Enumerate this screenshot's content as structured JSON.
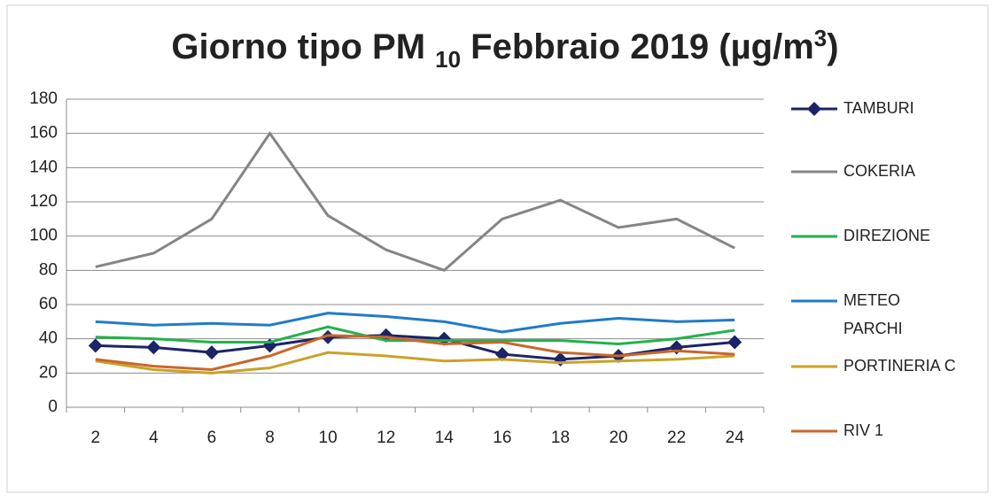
{
  "chart_data": {
    "type": "line",
    "title": [
      "Giorno tipo PM ",
      "10",
      " Febbraio 2019 (µg/m",
      "3",
      ")"
    ],
    "categories": [
      "2",
      "4",
      "6",
      "8",
      "10",
      "12",
      "14",
      "16",
      "18",
      "20",
      "22",
      "24"
    ],
    "ylim": [
      0,
      180
    ],
    "yticks": [
      0,
      20,
      40,
      60,
      80,
      100,
      120,
      140,
      160,
      180
    ],
    "grid": true,
    "legend": "right",
    "series": [
      {
        "name": "TAMBURI",
        "color": "#1b2466",
        "marker": "diamond",
        "values": [
          36,
          35,
          32,
          36,
          41,
          42,
          40,
          31,
          28,
          30,
          35,
          38
        ]
      },
      {
        "name": "COKERIA",
        "color": "#858585",
        "values": [
          82,
          90,
          110,
          160,
          112,
          92,
          80,
          110,
          121,
          105,
          110,
          93
        ]
      },
      {
        "name": "DIREZIONE",
        "color": "#22b14c",
        "values": [
          41,
          40,
          38,
          38,
          47,
          39,
          39,
          39,
          39,
          37,
          40,
          45
        ]
      },
      {
        "name": "METEO PARCHI",
        "color": "#1f7bc9",
        "values": [
          50,
          48,
          49,
          48,
          55,
          53,
          50,
          44,
          49,
          52,
          50,
          51
        ]
      },
      {
        "name": "PORTINERIA C",
        "color": "#c9a227",
        "values": [
          27,
          22,
          20,
          23,
          32,
          30,
          27,
          28,
          26,
          27,
          28,
          30
        ]
      },
      {
        "name": "RIV 1",
        "color": "#c8672a",
        "values": [
          28,
          24,
          22,
          30,
          42,
          41,
          37,
          38,
          32,
          30,
          33,
          31
        ]
      }
    ]
  }
}
